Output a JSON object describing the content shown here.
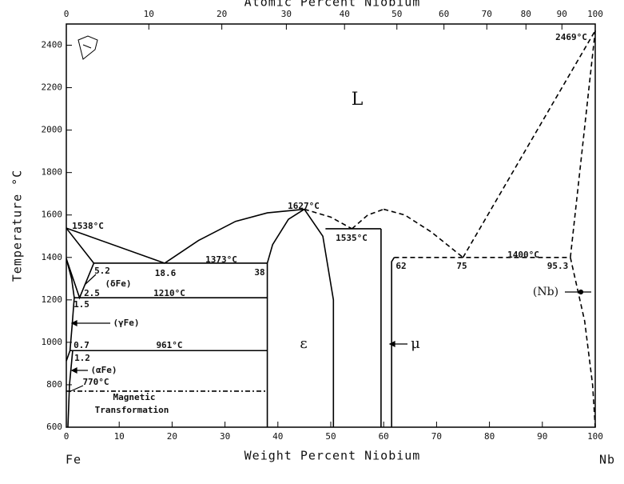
{
  "chart_data": {
    "type": "line",
    "xlabel": "Weight Percent Niobium",
    "x2label": "Atomic Percent Niobium",
    "ylabel": "Temperature °C",
    "x_left_label": "Fe",
    "x_right_label": "Nb",
    "xlim": [
      0,
      100
    ],
    "xticks": [
      0,
      10,
      20,
      30,
      40,
      50,
      60,
      70,
      80,
      90,
      100
    ],
    "x2ticks": [
      {
        "value": 0,
        "label": "0"
      },
      {
        "value": 15.6,
        "label": "10"
      },
      {
        "value": 29.4,
        "label": "20"
      },
      {
        "value": 41.6,
        "label": "30"
      },
      {
        "value": 52.6,
        "label": "40"
      },
      {
        "value": 62.5,
        "label": "50"
      },
      {
        "value": 71.4,
        "label": "60"
      },
      {
        "value": 79.5,
        "label": "70"
      },
      {
        "value": 86.9,
        "label": "80"
      },
      {
        "value": 93.7,
        "label": "90"
      },
      {
        "value": 100,
        "label": "100"
      }
    ],
    "ylim": [
      600,
      2500
    ],
    "yticks": [
      600,
      800,
      1000,
      1200,
      1400,
      1600,
      1800,
      2000,
      2200,
      2400
    ],
    "series": [
      {
        "color": "#000",
        "dash": "solid",
        "x": [
          0,
          18.6
        ],
        "values": [
          1538,
          1373
        ]
      },
      {
        "color": "#000",
        "dash": "solid",
        "x": [
          18.6,
          25,
          32,
          38,
          45
        ],
        "values": [
          1373,
          1480,
          1570,
          1610,
          1627
        ]
      },
      {
        "color": "#000",
        "dash": "dashed",
        "x": [
          45,
          50,
          54
        ],
        "values": [
          1627,
          1590,
          1535
        ]
      },
      {
        "color": "#000",
        "dash": "dashed",
        "x": [
          54,
          57,
          60
        ],
        "values": [
          1535,
          1600,
          1627
        ]
      },
      {
        "color": "#000",
        "dash": "dashed",
        "x": [
          60,
          64,
          69,
          75
        ],
        "values": [
          1627,
          1600,
          1520,
          1400
        ]
      },
      {
        "color": "#000",
        "dash": "dashed",
        "x": [
          75,
          100
        ],
        "values": [
          1400,
          2469
        ]
      },
      {
        "color": "#000",
        "dash": "dashed",
        "x": [
          95.3,
          100
        ],
        "values": [
          1400,
          2469
        ]
      },
      {
        "color": "#000",
        "dash": "solid",
        "x": [
          5.2,
          38
        ],
        "values": [
          1373,
          1373
        ]
      },
      {
        "color": "#000",
        "dash": "dashed",
        "x": [
          62,
          95.3
        ],
        "values": [
          1400,
          1400
        ]
      },
      {
        "color": "#000",
        "dash": "solid",
        "x": [
          49,
          59.5
        ],
        "values": [
          1535,
          1535
        ]
      },
      {
        "color": "#000",
        "dash": "solid",
        "x": [
          38,
          38,
          39,
          42,
          45
        ],
        "values": [
          600,
          1373,
          1460,
          1580,
          1627
        ]
      },
      {
        "color": "#000",
        "dash": "solid",
        "x": [
          45,
          48.5,
          50.5,
          50.5
        ],
        "values": [
          1627,
          1500,
          1200,
          600
        ]
      },
      {
        "color": "#000",
        "dash": "solid",
        "x": [
          59.5,
          59.5
        ],
        "values": [
          600,
          1535
        ]
      },
      {
        "color": "#000",
        "dash": "solid",
        "x": [
          61.5,
          61.5,
          62
        ],
        "values": [
          600,
          1380,
          1400
        ]
      },
      {
        "color": "#000",
        "dash": "dashed",
        "x": [
          95.3,
          98,
          99.5,
          100
        ],
        "values": [
          1400,
          1100,
          800,
          600
        ]
      },
      {
        "color": "#000",
        "dash": "solid",
        "x": [
          1.5,
          38
        ],
        "values": [
          1210,
          1210
        ]
      },
      {
        "color": "#000",
        "dash": "solid",
        "x": [
          0.7,
          38
        ],
        "values": [
          961,
          961
        ]
      },
      {
        "color": "#000",
        "dash": "dashdot",
        "x": [
          0,
          38
        ],
        "values": [
          770,
          770
        ]
      },
      {
        "color": "#000",
        "dash": "solid",
        "x": [
          0,
          1,
          1.5,
          1.1,
          0.7,
          0
        ],
        "values": [
          1394,
          1300,
          1210,
          1080,
          961,
          912
        ]
      },
      {
        "color": "#000",
        "dash": "solid",
        "x": [
          0,
          2.5,
          5.2
        ],
        "values": [
          1394,
          1210,
          1373
        ]
      },
      {
        "color": "#000",
        "dash": "solid",
        "x": [
          0,
          5.2
        ],
        "values": [
          1538,
          1373
        ]
      },
      {
        "color": "#000",
        "dash": "solid",
        "x": [
          1.2,
          0.6,
          0.3
        ],
        "values": [
          961,
          800,
          600
        ]
      }
    ],
    "annotations": [
      "L",
      "1538°C",
      "1627°C",
      "1535°C",
      "1373°C",
      "1400°C",
      "2469°C",
      "18.6",
      "38",
      "62",
      "75",
      "95.3",
      "5.2",
      "2.5",
      "1.5",
      "(δFe)",
      "1210°C",
      "(γFe)",
      "0.7",
      "961°C",
      "1.2",
      "(αFe)",
      "770°C",
      "Magnetic",
      "Transformation",
      "ε",
      "μ",
      "(Nb)"
    ]
  }
}
